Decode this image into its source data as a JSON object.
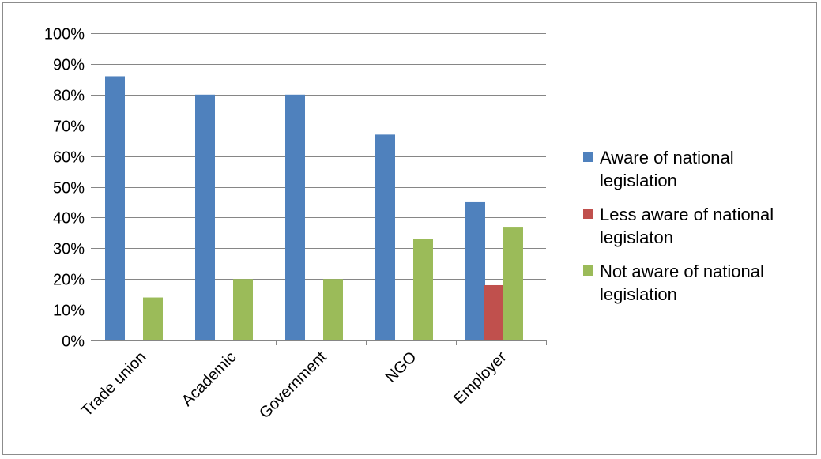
{
  "chart_data": {
    "type": "bar",
    "categories": [
      "Trade union",
      "Academic",
      "Government",
      "NGO",
      "Employer"
    ],
    "series": [
      {
        "name": "Aware of national legislation",
        "color": "#4f81bd",
        "values": [
          86,
          80,
          80,
          67,
          45
        ]
      },
      {
        "name": "Less aware of national legislaton",
        "color": "#c0504d",
        "values": [
          0,
          0,
          0,
          0,
          18
        ]
      },
      {
        "name": "Not aware of national legislation",
        "color": "#9bbb59",
        "values": [
          14,
          20,
          20,
          33,
          37
        ]
      }
    ],
    "y_ticks": [
      "0%",
      "10%",
      "20%",
      "30%",
      "40%",
      "50%",
      "60%",
      "70%",
      "80%",
      "90%",
      "100%"
    ],
    "ylim": [
      0,
      100
    ],
    "y_unit": "%",
    "grid": true,
    "legend_position": "right"
  }
}
